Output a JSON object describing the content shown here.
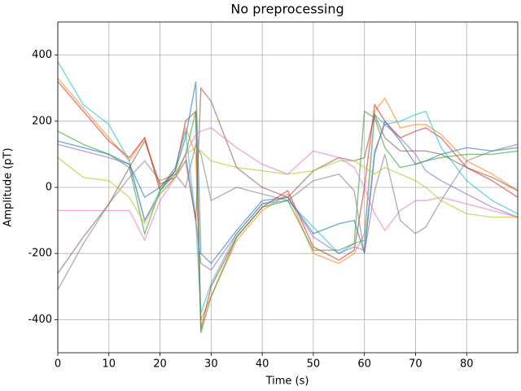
{
  "chart_data": {
    "type": "line",
    "title": "No preprocessing",
    "x_label": "Time (s)",
    "y_label": "Amplitude (pT)",
    "x": [
      0,
      5,
      10,
      14,
      17,
      20,
      23,
      25,
      27,
      28,
      30,
      35,
      40,
      45,
      50,
      55,
      58,
      60,
      62,
      64,
      67,
      70,
      72,
      75,
      80,
      85,
      90
    ],
    "series": [
      {
        "color": "#ff7f0e",
        "values": [
          330,
          240,
          150,
          80,
          150,
          0,
          60,
          180,
          100,
          -400,
          -330,
          -160,
          -70,
          -20,
          -200,
          -230,
          -200,
          -140,
          230,
          270,
          180,
          190,
          190,
          160,
          80,
          40,
          -10
        ]
      },
      {
        "color": "#d62728",
        "values": [
          320,
          230,
          140,
          90,
          150,
          -10,
          50,
          200,
          230,
          -430,
          -300,
          -150,
          -60,
          -10,
          -180,
          -220,
          -190,
          0,
          250,
          200,
          150,
          170,
          180,
          150,
          60,
          20,
          -30
        ]
      },
      {
        "color": "#17becf",
        "values": [
          380,
          250,
          190,
          80,
          -100,
          -10,
          60,
          170,
          -100,
          -380,
          -290,
          -140,
          -50,
          -40,
          -120,
          -200,
          -170,
          -160,
          220,
          190,
          200,
          220,
          230,
          120,
          20,
          -40,
          -80
        ]
      },
      {
        "color": "#1f77b4",
        "values": [
          140,
          120,
          100,
          70,
          -30,
          0,
          50,
          150,
          320,
          -200,
          -230,
          -130,
          -40,
          -30,
          -140,
          -110,
          -100,
          -200,
          100,
          200,
          140,
          70,
          80,
          100,
          120,
          110,
          120
        ]
      },
      {
        "color": "#2ca02c",
        "values": [
          170,
          130,
          100,
          60,
          -140,
          -10,
          40,
          100,
          230,
          -440,
          -330,
          -150,
          -60,
          -40,
          -190,
          -190,
          -170,
          230,
          210,
          120,
          60,
          70,
          80,
          90,
          100,
          100,
          110
        ]
      },
      {
        "color": "#9467bd",
        "values": [
          130,
          110,
          90,
          70,
          -100,
          -20,
          30,
          100,
          -100,
          -230,
          -250,
          -140,
          -50,
          -30,
          -150,
          -200,
          -180,
          -190,
          110,
          190,
          150,
          100,
          50,
          20,
          -20,
          -60,
          -90
        ]
      },
      {
        "color": "#8c564b",
        "values": [
          -260,
          -150,
          -50,
          60,
          140,
          10,
          30,
          80,
          -100,
          300,
          260,
          60,
          0,
          -30,
          50,
          90,
          80,
          90,
          220,
          150,
          110,
          110,
          110,
          100,
          60,
          30,
          -10
        ]
      },
      {
        "color": "#7f7f7f",
        "values": [
          -310,
          -170,
          -50,
          30,
          80,
          20,
          40,
          0,
          130,
          100,
          -40,
          0,
          -20,
          -40,
          20,
          40,
          -10,
          -200,
          -10,
          100,
          -100,
          -140,
          -120,
          -40,
          80,
          110,
          130
        ]
      },
      {
        "color": "#e377c2",
        "values": [
          -70,
          -70,
          -70,
          -70,
          -160,
          -40,
          30,
          100,
          160,
          170,
          180,
          120,
          70,
          40,
          110,
          90,
          60,
          0,
          -80,
          -130,
          -70,
          -40,
          -40,
          -30,
          -50,
          -70,
          -90
        ]
      },
      {
        "color": "#bcbd22",
        "values": [
          90,
          30,
          20,
          -30,
          -110,
          -20,
          30,
          100,
          120,
          110,
          80,
          60,
          50,
          40,
          50,
          80,
          80,
          60,
          40,
          60,
          40,
          20,
          0,
          -40,
          -80,
          -90,
          -90
        ]
      }
    ],
    "xlim": [
      0,
      90
    ],
    "ylim": [
      -500,
      500
    ],
    "xticks": [
      0,
      10,
      20,
      30,
      40,
      50,
      60,
      70,
      80
    ],
    "yticks": [
      -400,
      -200,
      0,
      200,
      400
    ],
    "grid": true
  }
}
